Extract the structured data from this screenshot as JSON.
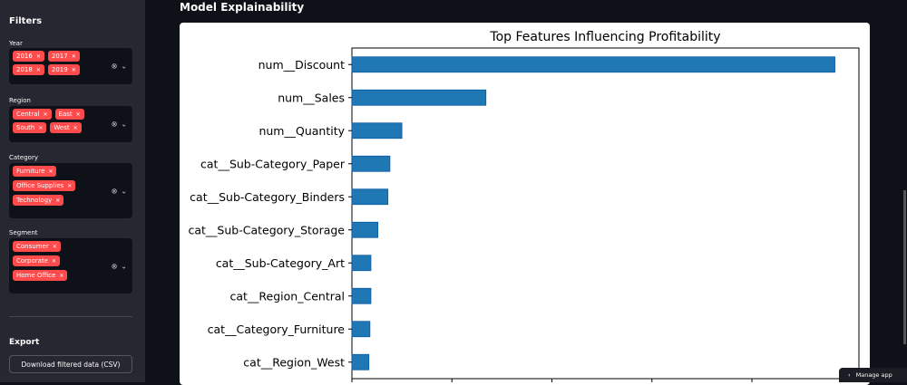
{
  "sidebar": {
    "filters_title": "Filters",
    "year": {
      "label": "Year",
      "tags": [
        "2016",
        "2017",
        "2018",
        "2019"
      ]
    },
    "region": {
      "label": "Region",
      "tags": [
        "Central",
        "East",
        "South",
        "West"
      ]
    },
    "category": {
      "label": "Category",
      "tags": [
        "Furniture",
        "Office Supplies",
        "Technology"
      ]
    },
    "segment": {
      "label": "Segment",
      "tags": [
        "Consumer",
        "Corporate",
        "Home Office"
      ]
    },
    "export_title": "Export",
    "download_label": "Download filtered data (CSV)"
  },
  "main": {
    "section_title": "Model Explainability"
  },
  "manage_app": "Manage app",
  "chart_data": {
    "type": "bar",
    "orientation": "horizontal",
    "title": "Top Features Influencing Profitability",
    "categories": [
      "num__Discount",
      "num__Sales",
      "num__Quantity",
      "cat__Sub-Category_Paper",
      "cat__Sub-Category_Binders",
      "cat__Sub-Category_Storage",
      "cat__Sub-Category_Art",
      "cat__Region_Central",
      "cat__Category_Furniture",
      "cat__Region_West"
    ],
    "values": [
      0.483,
      0.134,
      0.05,
      0.038,
      0.036,
      0.026,
      0.019,
      0.019,
      0.018,
      0.017
    ],
    "xticks": [
      "0.0",
      "0.1",
      "0.2",
      "0.3",
      "0.4"
    ],
    "xlim": [
      0,
      0.507
    ],
    "color": "#1f77b4",
    "grid": false
  }
}
